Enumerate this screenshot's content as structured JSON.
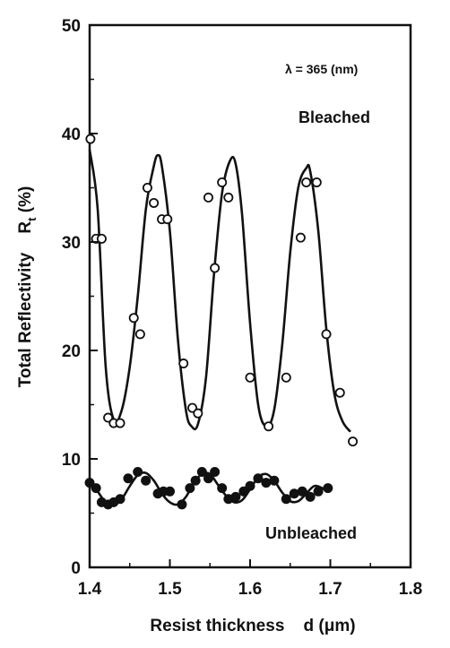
{
  "chart_data": {
    "type": "scatter",
    "xlabel": "Resist thickness    d (μm)",
    "ylabel": "Total Reflectivity    R",
    "ylabel_subscript": "t",
    "ylabel_unit": " (%)",
    "xlim": [
      1.4,
      1.8
    ],
    "ylim": [
      0,
      50
    ],
    "xticks": [
      1.4,
      1.5,
      1.6,
      1.7,
      1.8
    ],
    "xtick_labels": [
      "1.4",
      "1.5",
      "1.6",
      "1.7",
      "1.8"
    ],
    "yticks": [
      0,
      10,
      20,
      30,
      40,
      50
    ],
    "ytick_labels": [
      "0",
      "10",
      "20",
      "30",
      "40",
      "50"
    ],
    "grid": false,
    "annotations": {
      "wavelength": "λ = 365  (nm)",
      "bleached": "Bleached",
      "unbleached": "Unbleached"
    },
    "series": [
      {
        "name": "Bleached",
        "marker": "open-circle",
        "points": [
          [
            1.401,
            39.5
          ],
          [
            1.408,
            30.3
          ],
          [
            1.415,
            30.3
          ],
          [
            1.423,
            13.8
          ],
          [
            1.43,
            13.3
          ],
          [
            1.438,
            13.3
          ],
          [
            1.455,
            23.0
          ],
          [
            1.463,
            21.5
          ],
          [
            1.472,
            35.0
          ],
          [
            1.48,
            33.6
          ],
          [
            1.49,
            32.1
          ],
          [
            1.497,
            32.1
          ],
          [
            1.517,
            18.8
          ],
          [
            1.528,
            14.7
          ],
          [
            1.535,
            14.2
          ],
          [
            1.548,
            34.1
          ],
          [
            1.556,
            27.6
          ],
          [
            1.565,
            35.5
          ],
          [
            1.573,
            34.1
          ],
          [
            1.6,
            17.5
          ],
          [
            1.623,
            13.0
          ],
          [
            1.645,
            17.5
          ],
          [
            1.663,
            30.4
          ],
          [
            1.67,
            35.5
          ],
          [
            1.683,
            35.5
          ],
          [
            1.695,
            21.5
          ],
          [
            1.712,
            16.1
          ],
          [
            1.728,
            11.6
          ]
        ],
        "fit": [
          [
            1.4,
            38.5
          ],
          [
            1.41,
            33.0
          ],
          [
            1.42,
            18.5
          ],
          [
            1.43,
            13.6
          ],
          [
            1.44,
            14.5
          ],
          [
            1.45,
            18.5
          ],
          [
            1.46,
            25.0
          ],
          [
            1.47,
            33.0
          ],
          [
            1.48,
            37.0
          ],
          [
            1.485,
            38.0
          ],
          [
            1.49,
            37.0
          ],
          [
            1.5,
            31.0
          ],
          [
            1.51,
            21.0
          ],
          [
            1.52,
            14.5
          ],
          [
            1.527,
            13.0
          ],
          [
            1.535,
            13.2
          ],
          [
            1.545,
            17.5
          ],
          [
            1.555,
            27.0
          ],
          [
            1.565,
            34.5
          ],
          [
            1.575,
            37.5
          ],
          [
            1.582,
            37.2
          ],
          [
            1.59,
            32.5
          ],
          [
            1.6,
            22.5
          ],
          [
            1.61,
            15.0
          ],
          [
            1.62,
            13.0
          ],
          [
            1.63,
            14.5
          ],
          [
            1.64,
            20.5
          ],
          [
            1.65,
            29.0
          ],
          [
            1.66,
            35.0
          ],
          [
            1.67,
            36.8
          ],
          [
            1.675,
            36.5
          ],
          [
            1.685,
            31.0
          ],
          [
            1.695,
            22.0
          ],
          [
            1.705,
            16.0
          ],
          [
            1.715,
            13.5
          ],
          [
            1.725,
            12.5
          ]
        ]
      },
      {
        "name": "Unbleached",
        "marker": "filled-circle",
        "points": [
          [
            1.4,
            7.8
          ],
          [
            1.408,
            7.3
          ],
          [
            1.415,
            6.0
          ],
          [
            1.423,
            5.8
          ],
          [
            1.43,
            6.0
          ],
          [
            1.438,
            6.3
          ],
          [
            1.448,
            8.2
          ],
          [
            1.46,
            8.8
          ],
          [
            1.47,
            8.0
          ],
          [
            1.485,
            6.8
          ],
          [
            1.492,
            7.0
          ],
          [
            1.5,
            7.0
          ],
          [
            1.515,
            5.8
          ],
          [
            1.525,
            7.3
          ],
          [
            1.532,
            8.0
          ],
          [
            1.54,
            8.8
          ],
          [
            1.548,
            8.2
          ],
          [
            1.556,
            8.8
          ],
          [
            1.565,
            7.3
          ],
          [
            1.573,
            6.3
          ],
          [
            1.582,
            6.5
          ],
          [
            1.592,
            7.0
          ],
          [
            1.6,
            7.5
          ],
          [
            1.61,
            8.2
          ],
          [
            1.62,
            7.8
          ],
          [
            1.63,
            8.0
          ],
          [
            1.645,
            6.3
          ],
          [
            1.655,
            6.8
          ],
          [
            1.665,
            7.0
          ],
          [
            1.675,
            6.5
          ],
          [
            1.685,
            7.0
          ],
          [
            1.697,
            7.3
          ]
        ],
        "fit": [
          [
            1.4,
            8.0
          ],
          [
            1.41,
            7.0
          ],
          [
            1.42,
            6.0
          ],
          [
            1.43,
            5.8
          ],
          [
            1.44,
            6.3
          ],
          [
            1.45,
            7.5
          ],
          [
            1.46,
            8.5
          ],
          [
            1.47,
            8.7
          ],
          [
            1.48,
            8.0
          ],
          [
            1.49,
            6.8
          ],
          [
            1.5,
            6.0
          ],
          [
            1.51,
            5.8
          ],
          [
            1.52,
            6.5
          ],
          [
            1.53,
            7.8
          ],
          [
            1.54,
            8.6
          ],
          [
            1.55,
            8.6
          ],
          [
            1.56,
            7.6
          ],
          [
            1.57,
            6.6
          ],
          [
            1.58,
            6.0
          ],
          [
            1.59,
            6.2
          ],
          [
            1.6,
            7.2
          ],
          [
            1.61,
            8.3
          ],
          [
            1.62,
            8.6
          ],
          [
            1.63,
            8.0
          ],
          [
            1.64,
            6.9
          ],
          [
            1.65,
            6.1
          ],
          [
            1.66,
            6.1
          ],
          [
            1.67,
            6.8
          ],
          [
            1.68,
            7.5
          ],
          [
            1.69,
            7.3
          ],
          [
            1.697,
            7.0
          ]
        ]
      }
    ]
  }
}
